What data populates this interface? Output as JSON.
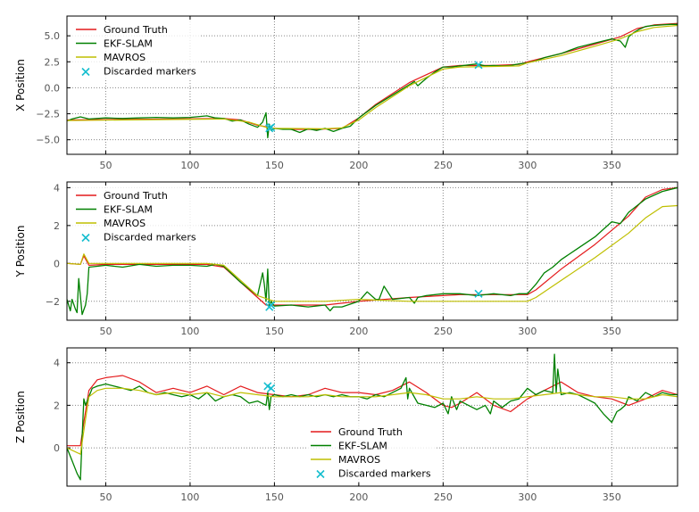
{
  "colors": {
    "ground_truth": "#e41a1c",
    "ekf_slam": "#008000",
    "mavros": "#bfbf00",
    "discarded": "#17becf",
    "grid": "#888888",
    "axis": "#000000"
  },
  "chart_data": [
    {
      "type": "line",
      "ylabel": "X Position",
      "xlim": [
        27,
        389
      ],
      "ylim": [
        -6.4,
        6.9
      ],
      "xticks": [
        "50",
        "100",
        "150",
        "200",
        "250",
        "300",
        "350"
      ],
      "yticks": [
        "5.0",
        "2.5",
        "0.0",
        "−2.5",
        "−5.0"
      ],
      "ytick_values": [
        5.0,
        2.5,
        0.0,
        -2.5,
        -5.0
      ],
      "grid": true,
      "legend_position": "top-left",
      "legend": [
        "Ground Truth",
        "EKF-SLAM",
        "MAVROS",
        "Discarded markers"
      ],
      "series": [
        {
          "name": "Ground Truth",
          "x": [
            27,
            120,
            130,
            140,
            150,
            160,
            175,
            190,
            200,
            210,
            230,
            250,
            260,
            280,
            295,
            300,
            320,
            340,
            355,
            365,
            375,
            389
          ],
          "y": [
            -3.1,
            -2.95,
            -3.1,
            -3.6,
            -3.9,
            -4.0,
            -4.0,
            -3.9,
            -2.9,
            -1.6,
            0.5,
            2.0,
            2.15,
            2.15,
            2.25,
            2.5,
            3.3,
            4.2,
            4.9,
            5.7,
            6.05,
            6.2
          ]
        },
        {
          "name": "EKF-SLAM",
          "x": [
            27,
            30,
            35,
            40,
            50,
            60,
            70,
            80,
            90,
            100,
            110,
            115,
            120,
            125,
            130,
            135,
            140,
            143,
            145,
            146,
            147,
            148,
            150,
            155,
            160,
            165,
            170,
            175,
            180,
            185,
            190,
            195,
            200,
            205,
            210,
            220,
            230,
            233,
            235,
            240,
            245,
            250,
            255,
            260,
            265,
            270,
            275,
            280,
            285,
            290,
            295,
            300,
            305,
            310,
            320,
            330,
            340,
            350,
            355,
            358,
            360,
            363,
            366,
            370,
            375,
            380,
            385,
            389
          ],
          "y": [
            -3.2,
            -3.0,
            -2.8,
            -3.0,
            -2.9,
            -2.95,
            -2.9,
            -2.85,
            -2.9,
            -2.85,
            -2.7,
            -2.9,
            -2.95,
            -3.2,
            -3.1,
            -3.5,
            -3.8,
            -3.3,
            -2.4,
            -4.8,
            -3.5,
            -4.1,
            -3.9,
            -4.0,
            -4.0,
            -4.3,
            -3.95,
            -4.1,
            -3.9,
            -4.2,
            -3.9,
            -3.7,
            -2.9,
            -2.3,
            -1.7,
            -0.7,
            0.3,
            0.6,
            0.2,
            0.9,
            1.5,
            2.0,
            2.0,
            2.1,
            2.2,
            2.3,
            2.1,
            2.15,
            2.1,
            2.15,
            2.3,
            2.4,
            2.6,
            2.9,
            3.3,
            3.9,
            4.3,
            4.7,
            4.5,
            3.9,
            4.9,
            5.3,
            5.6,
            5.9,
            6.0,
            6.05,
            6.1,
            6.1
          ]
        },
        {
          "name": "MAVROS",
          "x": [
            27,
            120,
            135,
            145,
            150,
            180,
            190,
            200,
            210,
            230,
            250,
            260,
            280,
            295,
            300,
            320,
            340,
            355,
            365,
            375,
            389
          ],
          "y": [
            -3.15,
            -3.0,
            -3.3,
            -3.8,
            -3.9,
            -3.95,
            -3.85,
            -3.1,
            -1.9,
            0.2,
            1.8,
            2.0,
            2.05,
            2.1,
            2.4,
            3.1,
            4.0,
            4.7,
            5.4,
            5.8,
            6.0
          ]
        },
        {
          "name": "Discarded markers",
          "x": [
            147,
            148,
            271
          ],
          "y": [
            -3.9,
            -3.8,
            2.2
          ]
        }
      ]
    },
    {
      "type": "line",
      "ylabel": "Y Position",
      "xlim": [
        27,
        389
      ],
      "ylim": [
        -3.0,
        4.3
      ],
      "xticks": [
        "50",
        "100",
        "150",
        "200",
        "250",
        "300",
        "350"
      ],
      "yticks": [
        "4",
        "2",
        "0",
        "−2"
      ],
      "ytick_values": [
        4,
        2,
        0,
        -2
      ],
      "grid": true,
      "legend_position": "top-left",
      "legend": [
        "Ground Truth",
        "EKF-SLAM",
        "MAVROS",
        "Discarded markers"
      ],
      "series": [
        {
          "name": "Ground Truth",
          "x": [
            27,
            35,
            37,
            40,
            50,
            80,
            110,
            120,
            130,
            140,
            145,
            150,
            180,
            200,
            230,
            260,
            280,
            300,
            305,
            320,
            340,
            360,
            370,
            380,
            389
          ],
          "y": [
            0.0,
            -0.05,
            0.4,
            -0.1,
            -0.05,
            -0.05,
            -0.05,
            -0.2,
            -1.0,
            -1.8,
            -2.2,
            -2.2,
            -2.2,
            -2.0,
            -1.8,
            -1.65,
            -1.65,
            -1.65,
            -1.4,
            -0.3,
            1.0,
            2.5,
            3.5,
            3.9,
            4.0
          ]
        },
        {
          "name": "EKF-SLAM",
          "x": [
            27,
            29,
            30,
            32,
            33,
            34,
            36,
            38,
            39,
            40,
            45,
            50,
            60,
            70,
            80,
            90,
            100,
            110,
            115,
            120,
            130,
            140,
            143,
            144,
            145,
            146,
            147,
            148,
            150,
            160,
            170,
            180,
            183,
            185,
            190,
            200,
            205,
            210,
            212,
            215,
            220,
            230,
            233,
            235,
            240,
            250,
            260,
            270,
            280,
            290,
            295,
            300,
            305,
            310,
            315,
            320,
            330,
            340,
            350,
            355,
            360,
            370,
            380,
            389
          ],
          "y": [
            -1.9,
            -2.5,
            -1.9,
            -2.4,
            -2.6,
            -0.8,
            -2.7,
            -2.2,
            -1.6,
            -0.2,
            -0.15,
            -0.1,
            -0.2,
            -0.05,
            -0.15,
            -0.1,
            -0.1,
            -0.15,
            -0.05,
            -0.15,
            -1.0,
            -1.7,
            -0.5,
            -1.1,
            -2.0,
            -0.3,
            -2.3,
            -2.0,
            -2.25,
            -2.2,
            -2.3,
            -2.2,
            -2.5,
            -2.3,
            -2.3,
            -2.0,
            -1.5,
            -1.9,
            -1.9,
            -1.2,
            -1.9,
            -1.8,
            -2.1,
            -1.8,
            -1.7,
            -1.6,
            -1.6,
            -1.7,
            -1.6,
            -1.7,
            -1.6,
            -1.6,
            -1.1,
            -0.5,
            -0.2,
            0.2,
            0.8,
            1.4,
            2.2,
            2.1,
            2.7,
            3.4,
            3.8,
            4.0
          ]
        },
        {
          "name": "MAVROS",
          "x": [
            27,
            35,
            37,
            40,
            50,
            80,
            110,
            120,
            130,
            140,
            150,
            180,
            200,
            230,
            260,
            280,
            300,
            305,
            320,
            340,
            360,
            370,
            380,
            389
          ],
          "y": [
            0.0,
            -0.05,
            0.5,
            0.0,
            0.0,
            0.0,
            0.0,
            -0.1,
            -0.9,
            -1.7,
            -2.0,
            -2.0,
            -1.9,
            -2.0,
            -2.0,
            -2.0,
            -2.0,
            -1.8,
            -0.9,
            0.3,
            1.6,
            2.4,
            3.0,
            3.05
          ]
        },
        {
          "name": "Discarded markers",
          "x": [
            147,
            148,
            271
          ],
          "y": [
            -2.3,
            -2.2,
            -1.6
          ]
        }
      ]
    },
    {
      "type": "line",
      "ylabel": "Z Position",
      "xlim": [
        27,
        389
      ],
      "ylim": [
        -1.8,
        4.7
      ],
      "xticks": [
        "50",
        "100",
        "150",
        "200",
        "250",
        "300",
        "350"
      ],
      "yticks": [
        "4",
        "2",
        "0"
      ],
      "ytick_values": [
        4,
        2,
        0
      ],
      "grid": true,
      "legend_position": "lower-center",
      "legend": [
        "Ground Truth",
        "EKF-SLAM",
        "MAVROS",
        "Discarded markers"
      ],
      "series": [
        {
          "name": "Ground Truth",
          "x": [
            27,
            35,
            37,
            40,
            45,
            50,
            60,
            70,
            80,
            90,
            100,
            110,
            120,
            130,
            140,
            150,
            160,
            170,
            180,
            190,
            200,
            210,
            220,
            230,
            240,
            250,
            255,
            260,
            270,
            280,
            290,
            300,
            310,
            320,
            330,
            340,
            350,
            360,
            370,
            380,
            389
          ],
          "y": [
            0.1,
            0.1,
            1.2,
            2.7,
            3.2,
            3.3,
            3.4,
            3.1,
            2.6,
            2.8,
            2.6,
            2.9,
            2.5,
            2.9,
            2.6,
            2.5,
            2.4,
            2.5,
            2.8,
            2.6,
            2.6,
            2.5,
            2.7,
            3.1,
            2.6,
            2.0,
            1.9,
            2.1,
            2.6,
            2.0,
            1.7,
            2.3,
            2.7,
            3.1,
            2.6,
            2.4,
            2.3,
            2.0,
            2.3,
            2.7,
            2.5
          ]
        },
        {
          "name": "EKF-SLAM",
          "x": [
            27,
            30,
            33,
            35,
            36,
            37,
            38,
            40,
            42,
            45,
            50,
            55,
            60,
            65,
            70,
            75,
            80,
            85,
            90,
            95,
            100,
            105,
            110,
            115,
            120,
            125,
            130,
            135,
            140,
            145,
            146,
            147,
            148,
            150,
            155,
            160,
            165,
            170,
            175,
            180,
            185,
            190,
            195,
            200,
            205,
            210,
            215,
            220,
            225,
            228,
            229,
            230,
            235,
            240,
            245,
            250,
            253,
            255,
            258,
            260,
            265,
            270,
            275,
            278,
            280,
            285,
            290,
            295,
            300,
            305,
            310,
            315,
            316,
            317,
            318,
            320,
            325,
            330,
            335,
            340,
            345,
            350,
            353,
            355,
            358,
            360,
            365,
            370,
            375,
            380,
            385,
            389
          ],
          "y": [
            0.0,
            -0.6,
            -1.2,
            -1.5,
            0.5,
            2.3,
            2.0,
            2.4,
            2.8,
            2.9,
            3.0,
            2.9,
            2.8,
            2.7,
            2.9,
            2.6,
            2.5,
            2.6,
            2.5,
            2.4,
            2.5,
            2.3,
            2.6,
            2.2,
            2.4,
            2.5,
            2.4,
            2.1,
            2.2,
            2.0,
            2.6,
            1.8,
            2.4,
            2.5,
            2.4,
            2.5,
            2.4,
            2.5,
            2.4,
            2.5,
            2.4,
            2.5,
            2.4,
            2.4,
            2.3,
            2.5,
            2.4,
            2.6,
            2.8,
            3.3,
            2.3,
            2.8,
            2.1,
            2.0,
            1.9,
            2.1,
            1.6,
            2.4,
            1.8,
            2.2,
            2.0,
            1.8,
            2.0,
            1.6,
            2.2,
            1.9,
            2.2,
            2.3,
            2.8,
            2.5,
            2.7,
            2.6,
            4.4,
            2.6,
            3.7,
            2.5,
            2.6,
            2.5,
            2.3,
            2.1,
            1.6,
            1.2,
            1.7,
            1.8,
            2.0,
            2.4,
            2.2,
            2.6,
            2.4,
            2.6,
            2.5,
            2.5
          ]
        },
        {
          "name": "MAVROS",
          "x": [
            27,
            35,
            37,
            40,
            45,
            50,
            60,
            70,
            80,
            90,
            100,
            110,
            120,
            130,
            140,
            150,
            160,
            170,
            180,
            190,
            200,
            210,
            220,
            230,
            240,
            250,
            260,
            270,
            280,
            290,
            300,
            310,
            320,
            330,
            340,
            350,
            360,
            370,
            380,
            389
          ],
          "y": [
            0.0,
            -0.3,
            0.8,
            2.4,
            2.7,
            2.8,
            2.8,
            2.7,
            2.5,
            2.6,
            2.5,
            2.6,
            2.4,
            2.6,
            2.5,
            2.4,
            2.4,
            2.4,
            2.5,
            2.4,
            2.4,
            2.4,
            2.5,
            2.6,
            2.5,
            2.3,
            2.3,
            2.4,
            2.3,
            2.3,
            2.4,
            2.5,
            2.6,
            2.5,
            2.4,
            2.4,
            2.3,
            2.3,
            2.5,
            2.4
          ]
        },
        {
          "name": "Discarded markers",
          "x": [
            146,
            148
          ],
          "y": [
            2.9,
            2.8
          ]
        }
      ]
    }
  ]
}
